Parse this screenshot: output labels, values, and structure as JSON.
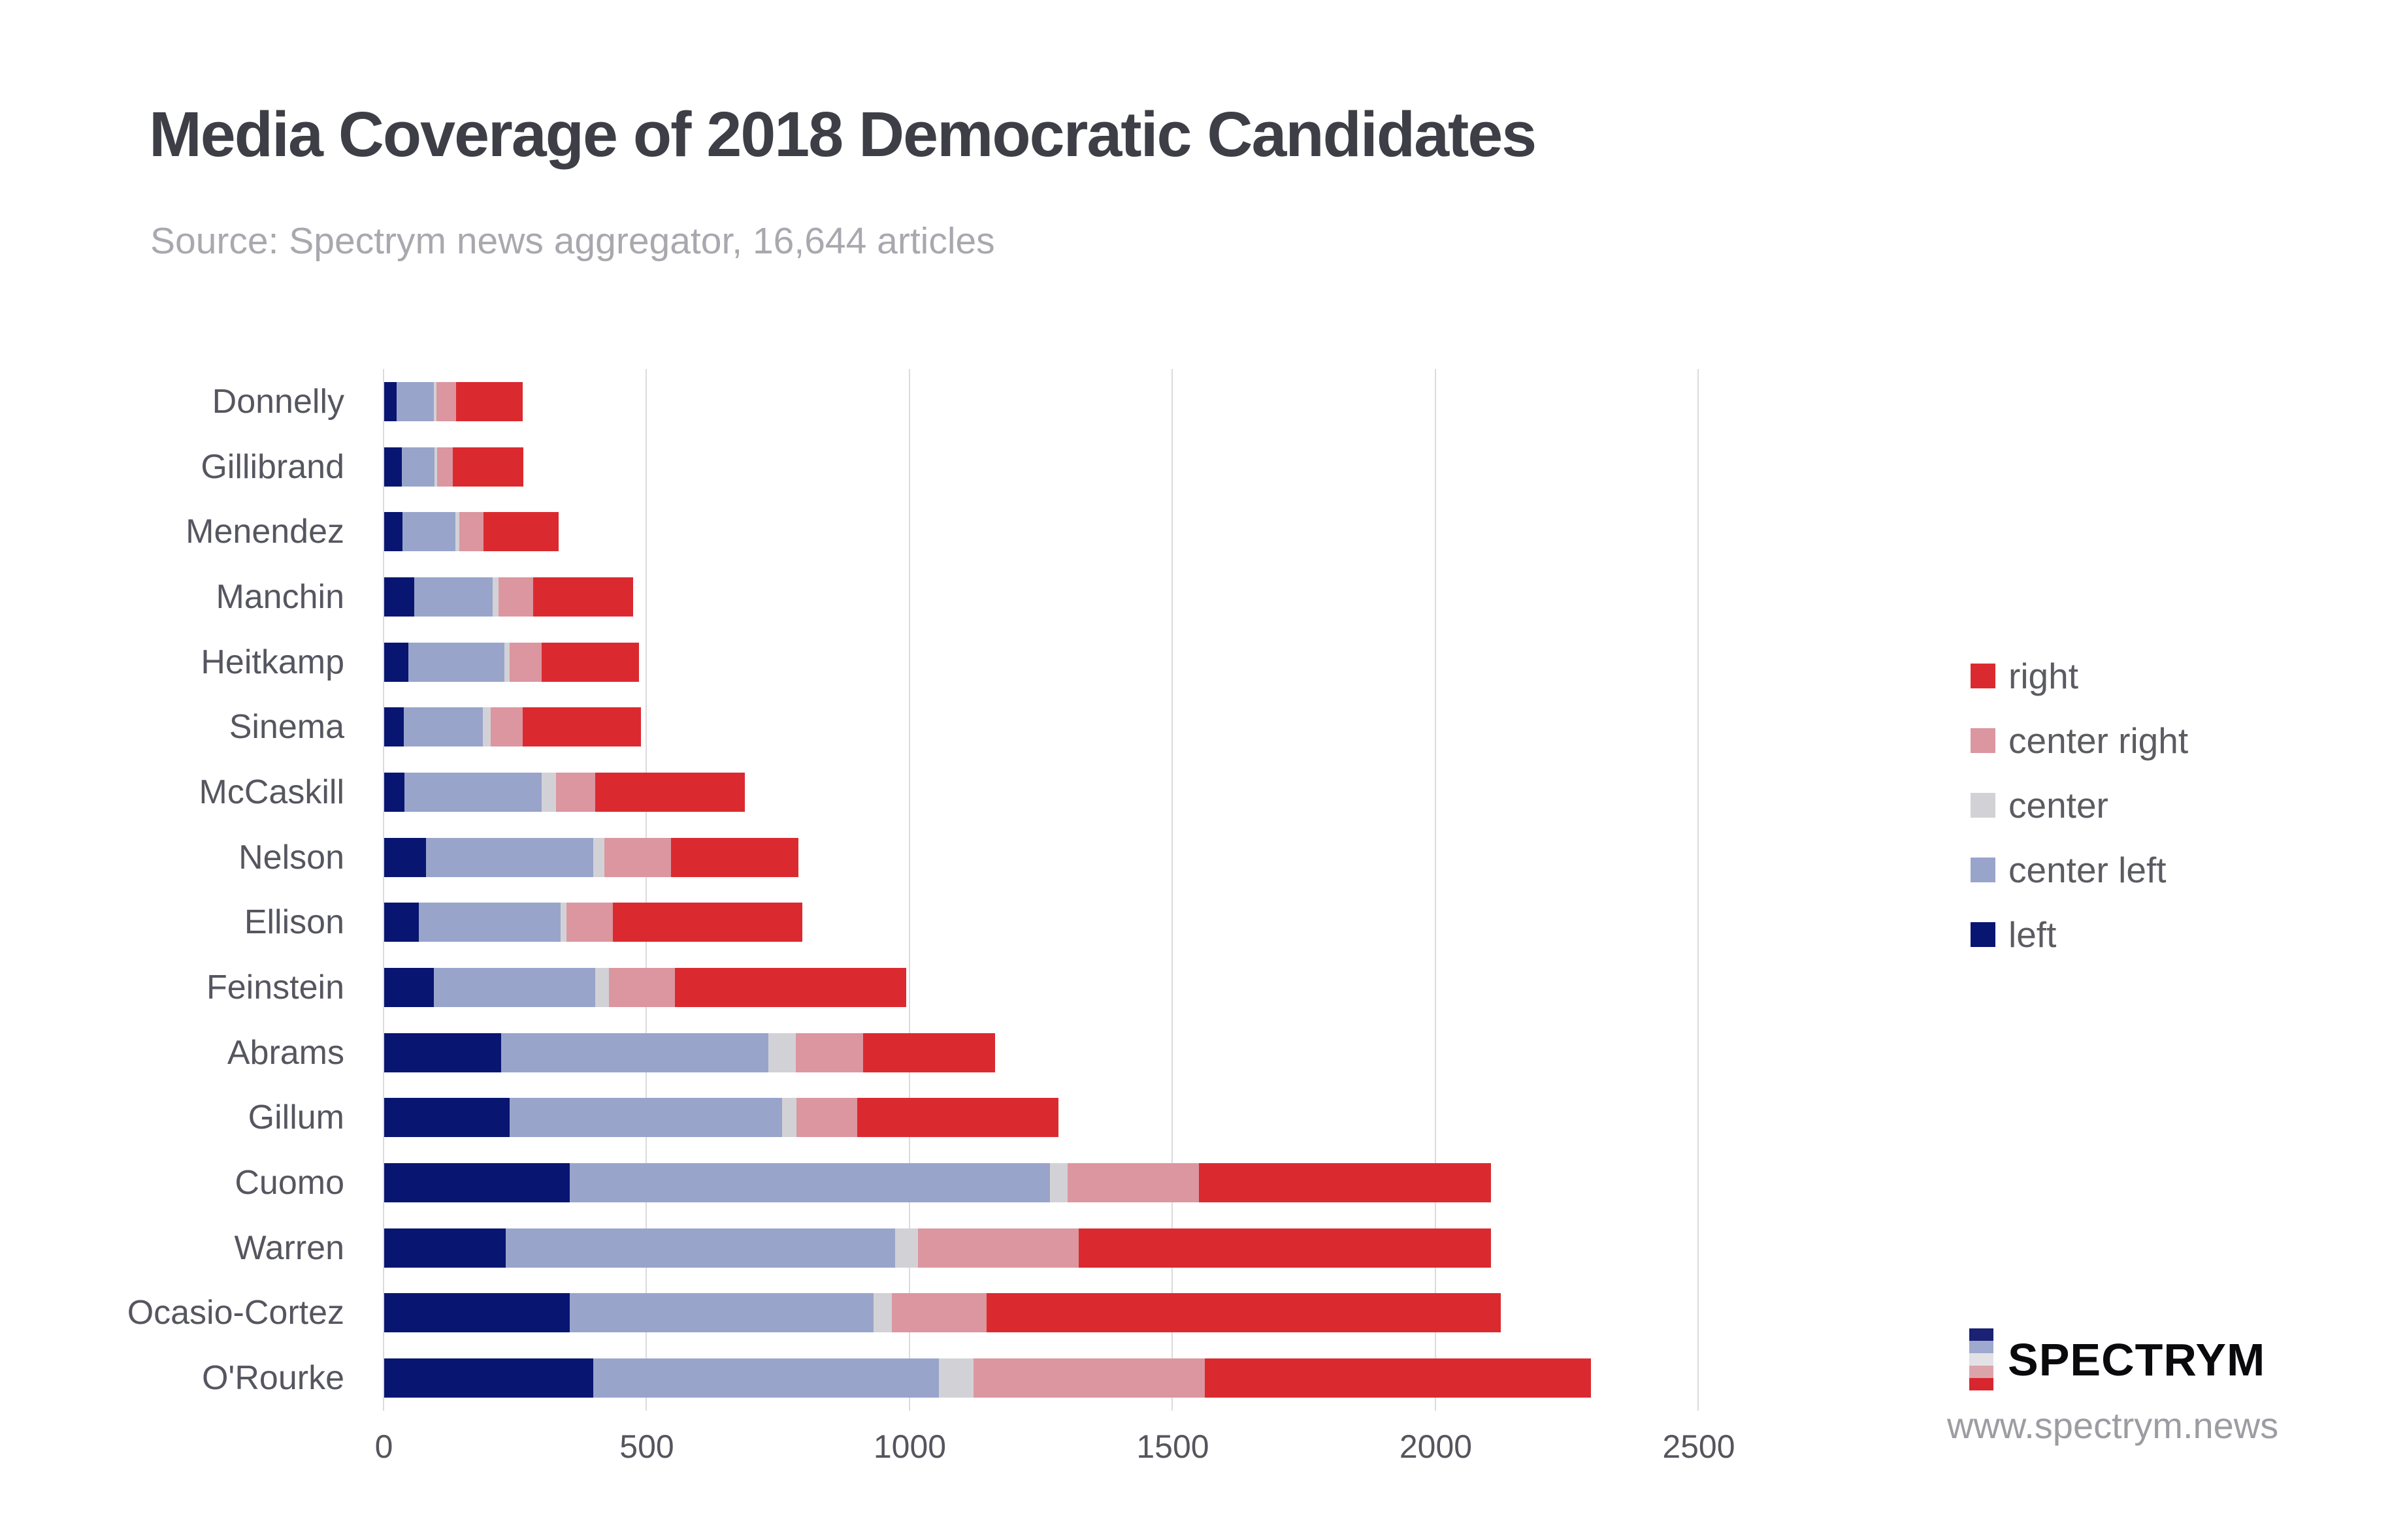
{
  "title": "Media Coverage of 2018 Democratic Candidates",
  "subtitle": "Source: Spectrym news aggregator, 16,644 articles",
  "chart_data": {
    "type": "bar",
    "orientation": "horizontal",
    "stacked": true,
    "title": "Media Coverage of 2018 Democratic Candidates",
    "xlabel": "",
    "ylabel": "",
    "categories": [
      "Donnelly",
      "Gillibrand",
      "Menendez",
      "Manchin",
      "Heitkamp",
      "Sinema",
      "McCaskill",
      "Nelson",
      "Ellison",
      "Feinstein",
      "Abrams",
      "Gillum",
      "Cuomo",
      "Warren",
      "Ocasio-Cortez",
      "O'Rourke"
    ],
    "series": [
      {
        "name": "left",
        "color": "#081571",
        "values": [
          24,
          33,
          35,
          57,
          46,
          37,
          39,
          79,
          66,
          95,
          222,
          238,
          353,
          231,
          353,
          397
        ]
      },
      {
        "name": "center left",
        "color": "#99a4cb",
        "values": [
          71,
          63,
          100,
          149,
          182,
          151,
          260,
          319,
          269,
          306,
          509,
          519,
          913,
          740,
          578,
          658
        ]
      },
      {
        "name": "center",
        "color": "#d2d2d6",
        "values": [
          5,
          5,
          8,
          12,
          10,
          15,
          28,
          21,
          12,
          26,
          52,
          27,
          33,
          44,
          34,
          66
        ]
      },
      {
        "name": "center right",
        "color": "#db96a0",
        "values": [
          37,
          30,
          46,
          65,
          62,
          61,
          74,
          127,
          88,
          126,
          128,
          115,
          250,
          306,
          181,
          439
        ]
      },
      {
        "name": "right",
        "color": "#da2a30",
        "values": [
          127,
          134,
          143,
          190,
          185,
          224,
          285,
          242,
          360,
          440,
          250,
          383,
          556,
          784,
          977,
          734
        ]
      }
    ],
    "totals": [
      264,
      265,
      332,
      473,
      485,
      488,
      686,
      788,
      795,
      993,
      1161,
      1282,
      2105,
      2105,
      2123,
      2294
    ],
    "x_ticks": [
      0,
      500,
      1000,
      1500,
      2000,
      2500
    ],
    "xlim": [
      0,
      2610
    ],
    "grid": "vertical",
    "gridline_color": "#dbdbde",
    "legend_position": "right",
    "legend_order": [
      "right",
      "center right",
      "center",
      "center left",
      "left"
    ]
  },
  "logo": {
    "name": "SPECTRYM",
    "url": "www.spectrym.news",
    "stripe_colors": [
      "#1b2173",
      "#9fa9cf",
      "#e2e2e6",
      "#dba4ab",
      "#d8262e"
    ]
  }
}
